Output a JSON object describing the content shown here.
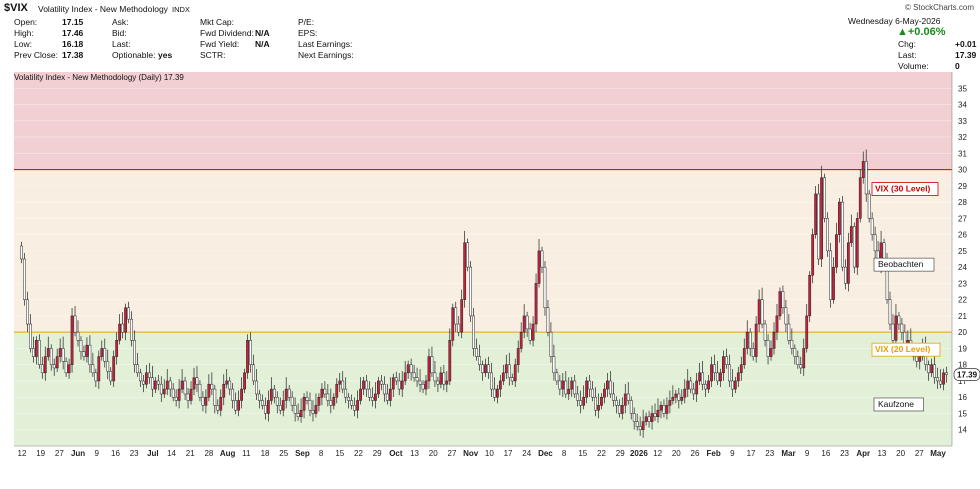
{
  "header": {
    "symbol": "$VIX",
    "name": "Volatility Index - New Methodology",
    "exchange": "INDX",
    "watermark": "© StockCharts.com",
    "date": "Wednesday  6-May-2026",
    "change_pct": "▲+0.06%",
    "col1": [
      {
        "label": "Open:",
        "value": "17.15"
      },
      {
        "label": "High:",
        "value": "17.46"
      },
      {
        "label": "Low:",
        "value": "16.18"
      },
      {
        "label": "Prev Close:",
        "value": "17.38"
      }
    ],
    "col2": [
      {
        "label": "Ask:",
        "value": ""
      },
      {
        "label": "Bid:",
        "value": ""
      },
      {
        "label": "Last:",
        "value": ""
      },
      {
        "label": "Optionable:",
        "value": "yes"
      }
    ],
    "col3": [
      {
        "label": "Mkt Cap:",
        "value": ""
      },
      {
        "label": "Fwd Dividend:",
        "value": "N/A"
      },
      {
        "label": "Fwd Yield:",
        "value": "N/A"
      },
      {
        "label": "SCTR:",
        "value": ""
      }
    ],
    "col4": [
      {
        "label": "P/E:",
        "value": ""
      },
      {
        "label": "EPS:",
        "value": ""
      },
      {
        "label": "Last Earnings:",
        "value": ""
      },
      {
        "label": "Next Earnings:",
        "value": ""
      }
    ],
    "col5": [
      {
        "label": "Chg:",
        "value": "+0.01"
      },
      {
        "label": "Last:",
        "value": "17.39"
      },
      {
        "label": "Volume:",
        "value": "0"
      }
    ]
  },
  "chart_data": {
    "type": "candlestick",
    "overlay_label": "Volatility Index - New Methodology (Daily) 17.39",
    "ylim": [
      13,
      36
    ],
    "yticks": [
      14,
      15,
      16,
      17,
      18,
      19,
      20,
      21,
      22,
      23,
      24,
      25,
      26,
      27,
      28,
      29,
      30,
      31,
      32,
      33,
      34,
      35
    ],
    "last_value": "17.39",
    "levels": [
      {
        "value": 30,
        "color": "#cc0000",
        "label": "VIX (30 Level)"
      },
      {
        "value": 20,
        "color": "#e8a000",
        "label": "VIX (20 Level)"
      }
    ],
    "zones": [
      {
        "from": 30,
        "to": 36,
        "color": "#f2cfd3"
      },
      {
        "from": 20,
        "to": 30,
        "color": "#f8eee2"
      },
      {
        "from": 13,
        "to": 20,
        "color": "#e3f0d8"
      }
    ],
    "annotations": [
      {
        "text": "Beobachten",
        "value": 24.0
      },
      {
        "text": "Kaufzone",
        "value": 15.4
      }
    ],
    "xlabels": [
      "12",
      "19",
      "27",
      "Jun",
      "9",
      "16",
      "23",
      "Jul",
      "14",
      "21",
      "28",
      "Aug",
      "11",
      "18",
      "25",
      "Sep",
      "8",
      "15",
      "22",
      "29",
      "Oct",
      "13",
      "20",
      "27",
      "Nov",
      "10",
      "17",
      "24",
      "Dec",
      "8",
      "15",
      "22",
      "29",
      "2026",
      "12",
      "20",
      "26",
      "Feb",
      "9",
      "17",
      "23",
      "Mar",
      "9",
      "16",
      "23",
      "Apr",
      "13",
      "20",
      "27",
      "May"
    ],
    "closes": [
      24.5,
      22.0,
      20.5,
      19.0,
      18.5,
      19.5,
      18.0,
      17.5,
      18.5,
      19.0,
      18.0,
      17.8,
      18.5,
      19.0,
      18.2,
      17.5,
      18.0,
      21.0,
      20.0,
      19.5,
      18.8,
      18.5,
      19.2,
      18.0,
      17.5,
      17.0,
      18.5,
      19.0,
      18.2,
      17.6,
      17.0,
      18.5,
      19.5,
      20.5,
      20.0,
      21.5,
      20.8,
      19.5,
      18.0,
      17.5,
      17.0,
      16.8,
      17.5,
      17.2,
      16.5,
      17.0,
      16.8,
      16.2,
      16.5,
      17.0,
      16.5,
      16.0,
      15.8,
      16.5,
      17.0,
      16.2,
      15.8,
      16.5,
      17.2,
      16.8,
      16.0,
      15.5,
      16.0,
      16.8,
      16.5,
      15.5,
      15.2,
      16.0,
      16.8,
      17.0,
      16.5,
      15.8,
      15.2,
      15.8,
      16.5,
      17.5,
      19.5,
      18.0,
      17.0,
      16.2,
      15.8,
      15.5,
      15.0,
      15.8,
      16.5,
      16.0,
      15.5,
      15.2,
      15.8,
      16.5,
      16.0,
      15.5,
      15.0,
      14.8,
      15.2,
      16.0,
      15.8,
      15.2,
      15.0,
      15.5,
      16.0,
      16.5,
      16.2,
      15.8,
      15.5,
      16.0,
      16.8,
      17.0,
      16.5,
      16.0,
      15.8,
      15.5,
      15.2,
      15.8,
      16.5,
      17.0,
      16.5,
      16.0,
      15.8,
      16.2,
      17.0,
      16.8,
      16.2,
      15.8,
      16.5,
      17.2,
      17.0,
      16.5,
      17.0,
      17.5,
      18.0,
      17.5,
      17.2,
      17.0,
      16.8,
      16.5,
      17.0,
      18.5,
      17.5,
      17.0,
      16.8,
      17.5,
      16.8,
      17.0,
      19.5,
      21.5,
      20.5,
      20.0,
      22.0,
      25.5,
      24.0,
      21.0,
      19.0,
      18.5,
      18.0,
      17.5,
      18.0,
      17.5,
      16.5,
      16.0,
      16.5,
      17.0,
      17.5,
      18.0,
      17.2,
      17.0,
      18.0,
      19.0,
      20.0,
      21.0,
      20.2,
      19.5,
      20.5,
      23.0,
      25.0,
      24.0,
      21.5,
      20.0,
      18.5,
      17.5,
      17.0,
      16.5,
      17.0,
      16.2,
      16.5,
      17.0,
      16.2,
      15.8,
      15.5,
      16.0,
      17.0,
      16.5,
      16.0,
      15.2,
      15.5,
      16.0,
      16.5,
      17.0,
      16.2,
      15.8,
      15.5,
      15.0,
      15.5,
      16.2,
      15.8,
      15.0,
      14.5,
      14.2,
      14.0,
      14.5,
      14.8,
      14.5,
      15.0,
      14.8,
      15.2,
      15.5,
      15.0,
      15.5,
      15.8,
      16.0,
      16.2,
      15.8,
      16.0,
      16.5,
      17.0,
      16.5,
      16.2,
      17.0,
      17.5,
      16.8,
      16.5,
      17.0,
      18.0,
      17.5,
      17.0,
      17.5,
      18.5,
      18.0,
      17.0,
      16.5,
      17.0,
      17.5,
      18.0,
      19.0,
      20.0,
      19.0,
      18.5,
      20.5,
      22.0,
      20.5,
      19.5,
      18.5,
      19.0,
      20.0,
      21.0,
      22.5,
      21.5,
      20.5,
      19.5,
      19.0,
      18.5,
      18.0,
      17.8,
      19.0,
      21.0,
      23.5,
      26.0,
      28.5,
      24.5,
      29.5,
      27.0,
      25.0,
      22.0,
      24.0,
      26.0,
      28.0,
      24.0,
      23.0,
      25.5,
      26.5,
      24.0,
      27.0,
      29.5,
      30.5,
      28.5,
      27.0,
      26.0,
      25.0,
      24.0,
      25.5,
      24.5,
      22.0,
      20.5,
      19.5,
      21.0,
      20.5,
      20.0,
      19.0,
      19.5,
      19.0,
      18.5,
      18.2,
      18.5,
      19.0,
      18.0,
      17.5,
      18.0,
      17.2,
      17.0,
      16.8,
      17.5,
      17.39
    ]
  }
}
